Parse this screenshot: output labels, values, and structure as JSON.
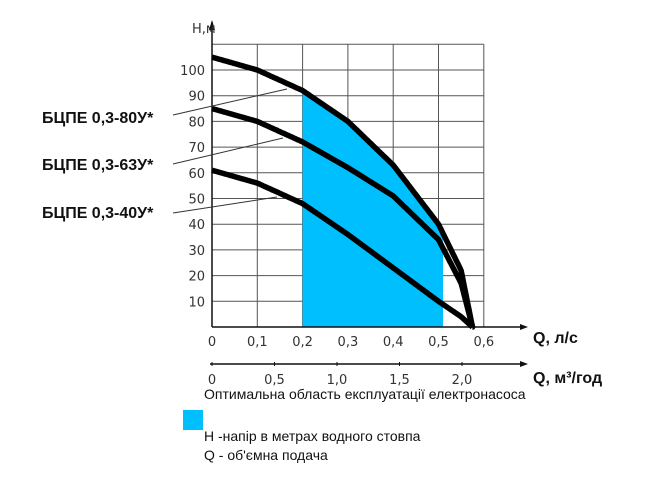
{
  "chart_data": {
    "type": "line",
    "ylabel": "Н,м",
    "xlabel": "Q, л/с",
    "xlabel2": "Q, м³/год",
    "xlim": [
      0,
      0.6
    ],
    "ylim": [
      0,
      110
    ],
    "xticks": [
      "0",
      "0,1",
      "0,2",
      "0,3",
      "0,4",
      "0,5",
      "0,6"
    ],
    "yticks": [
      "10",
      "20",
      "30",
      "40",
      "50",
      "60",
      "70",
      "80",
      "90",
      "100"
    ],
    "x2ticks": [
      {
        "label": "0",
        "value": 0
      },
      {
        "label": "0,5",
        "value": 0.5
      },
      {
        "label": "1,0",
        "value": 1.0
      },
      {
        "label": "1,5",
        "value": 1.5
      },
      {
        "label": "2,0",
        "value": 2.0
      }
    ],
    "grid": true,
    "series": [
      {
        "name": "БЦПЕ 0,3-80У*",
        "x": [
          0,
          0.1,
          0.2,
          0.3,
          0.4,
          0.5,
          0.55,
          0.575
        ],
        "y": [
          105,
          100,
          92,
          80,
          63,
          40,
          22,
          0
        ]
      },
      {
        "name": "БЦПЕ 0,3-63У*",
        "x": [
          0,
          0.1,
          0.2,
          0.3,
          0.4,
          0.5,
          0.55,
          0.575
        ],
        "y": [
          85,
          80,
          72,
          62,
          51,
          34,
          17,
          0
        ]
      },
      {
        "name": "БЦПЕ 0,3-40У*",
        "x": [
          0,
          0.1,
          0.2,
          0.3,
          0.4,
          0.5,
          0.55,
          0.575
        ],
        "y": [
          61,
          56,
          48,
          36,
          23,
          10,
          4,
          0
        ]
      }
    ],
    "optimal_region": {
      "x_from": 0.2,
      "x_to": 0.51,
      "color": "#00bfff"
    }
  },
  "legend": {
    "optimal": "Оптимальна область експлуатації електронасоса",
    "h_def": "Н -напір в метрах водного стовпа",
    "q_def": "Q - об'ємна подача"
  },
  "colors": {
    "region": "#00bfff",
    "curve": "#000000",
    "grid": "#555555"
  }
}
